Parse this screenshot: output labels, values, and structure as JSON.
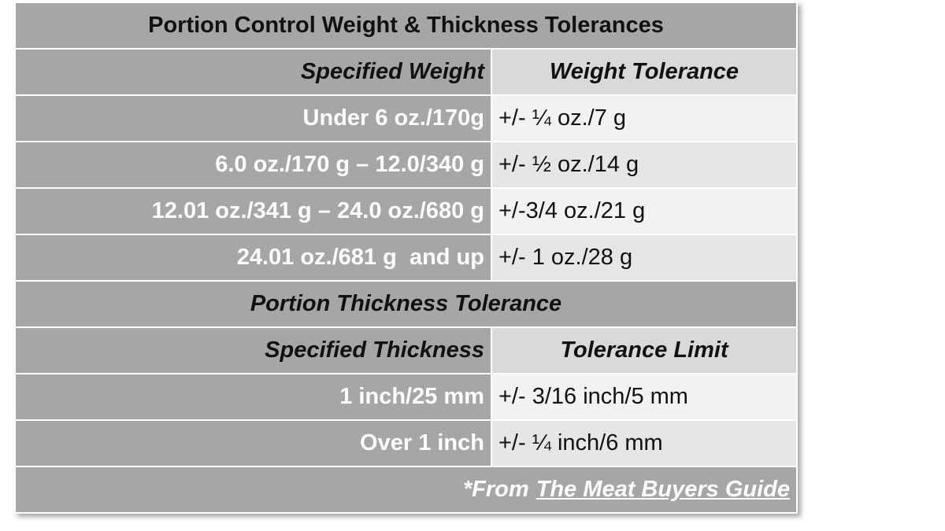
{
  "title": "Portion Control Weight & Thickness Tolerances",
  "weight_header": [
    "Specified Weight",
    "Weight Tolerance"
  ],
  "weight_rows": [
    [
      "Under 6 oz./170g",
      "+/- ¼ oz./7 g"
    ],
    [
      "6.0 oz./170 g – 12.0/340 g",
      "+/- ½ oz./14 g"
    ],
    [
      "12.01 oz./341 g – 24.0 oz./680 g",
      "+/-3/4 oz./21 g"
    ],
    [
      "24.01 oz./681 g  and up",
      "+/- 1 oz./28 g"
    ]
  ],
  "thickness_title": "Portion Thickness Tolerance",
  "thickness_header": [
    "Specified Thickness",
    "Tolerance Limit"
  ],
  "thickness_rows": [
    [
      "1 inch/25 mm",
      "+/- 3/16 inch/5 mm"
    ],
    [
      "Over 1 inch",
      "+/- ¼ inch/6 mm"
    ]
  ],
  "footer": {
    "prefix": "*From",
    "source": "The Meat Buyers Guide"
  }
}
